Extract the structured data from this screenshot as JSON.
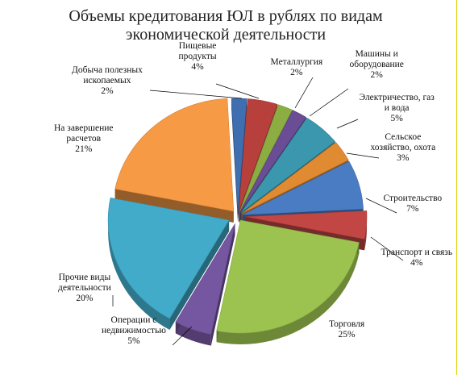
{
  "chart_data": {
    "type": "pie",
    "title": "Объемы кредитования ЮЛ  в рублях по видам экономической деятельности",
    "title_lines": [
      "Объемы кредитования ЮЛ  в рублях по видам",
      "экономической  деятельности"
    ],
    "slices": [
      {
        "name": "Добыча полезных ископаемых",
        "lines": [
          "Добыча полезных",
          "ископаемых"
        ],
        "value": 2,
        "pct": "2%",
        "color": "#3f6fb0"
      },
      {
        "name": "Пищевые продукты",
        "lines": [
          "Пищевые",
          "продукты"
        ],
        "value": 4,
        "pct": "4%",
        "color": "#b8403c"
      },
      {
        "name": "Металлургия",
        "lines": [
          "Металлургия"
        ],
        "value": 2,
        "pct": "2%",
        "color": "#8cad42"
      },
      {
        "name": "Машины и оборудование",
        "lines": [
          "Машины и",
          "оборудование"
        ],
        "value": 2,
        "pct": "2%",
        "color": "#6b4d96"
      },
      {
        "name": "Электричество, газ и вода",
        "lines": [
          "Электричество, газ",
          "и вода"
        ],
        "value": 5,
        "pct": "5%",
        "color": "#3a97ad"
      },
      {
        "name": "Сельское хозяйство, охота",
        "lines": [
          "Сельское",
          "хозяйство, охота"
        ],
        "value": 3,
        "pct": "3%",
        "color": "#e08a32"
      },
      {
        "name": "Строительство",
        "lines": [
          "Строительство"
        ],
        "value": 7,
        "pct": "7%",
        "color": "#4a7cc4"
      },
      {
        "name": "Транспорт и связь",
        "lines": [
          "Транспорт и связь"
        ],
        "value": 4,
        "pct": "4%",
        "color": "#c24744"
      },
      {
        "name": "Торговля",
        "lines": [
          "Торговля"
        ],
        "value": 25,
        "pct": "25%",
        "color": "#9cc24f"
      },
      {
        "name": "Операции с недвижимостью",
        "lines": [
          "Операции с",
          "недвижимостью"
        ],
        "value": 5,
        "pct": "5%",
        "color": "#7556a0"
      },
      {
        "name": "Прочие виды деятельности",
        "lines": [
          "Прочие виды",
          "деятельности"
        ],
        "value": 20,
        "pct": "20%",
        "color": "#41abc9"
      },
      {
        "name": "На завершение расчетов",
        "lines": [
          "На завершение",
          "расчетов"
        ],
        "value": 21,
        "pct": "21%",
        "color": "#f79a45"
      }
    ]
  }
}
